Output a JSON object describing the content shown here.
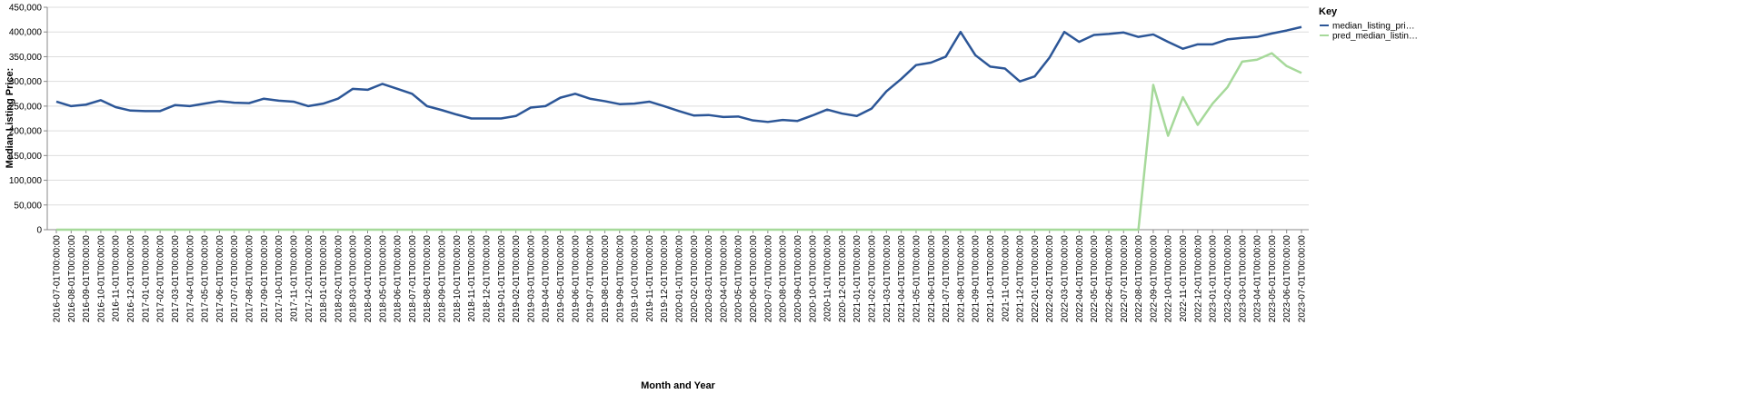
{
  "chart_data": {
    "type": "line",
    "x_label": "Month and Year",
    "y_label": "Median Listing Price:",
    "legend_title": "Key",
    "legend_position": "right",
    "grid": true,
    "categories": [
      "2016-07-01T00:00:00",
      "2016-08-01T00:00:00",
      "2016-09-01T00:00:00",
      "2016-10-01T00:00:00",
      "2016-11-01T00:00:00",
      "2016-12-01T00:00:00",
      "2017-01-01T00:00:00",
      "2017-02-01T00:00:00",
      "2017-03-01T00:00:00",
      "2017-04-01T00:00:00",
      "2017-05-01T00:00:00",
      "2017-06-01T00:00:00",
      "2017-07-01T00:00:00",
      "2017-08-01T00:00:00",
      "2017-09-01T00:00:00",
      "2017-10-01T00:00:00",
      "2017-11-01T00:00:00",
      "2017-12-01T00:00:00",
      "2018-01-01T00:00:00",
      "2018-02-01T00:00:00",
      "2018-03-01T00:00:00",
      "2018-04-01T00:00:00",
      "2018-05-01T00:00:00",
      "2018-06-01T00:00:00",
      "2018-07-01T00:00:00",
      "2018-08-01T00:00:00",
      "2018-09-01T00:00:00",
      "2018-10-01T00:00:00",
      "2018-11-01T00:00:00",
      "2018-12-01T00:00:00",
      "2019-01-01T00:00:00",
      "2019-02-01T00:00:00",
      "2019-03-01T00:00:00",
      "2019-04-01T00:00:00",
      "2019-05-01T00:00:00",
      "2019-06-01T00:00:00",
      "2019-07-01T00:00:00",
      "2019-08-01T00:00:00",
      "2019-09-01T00:00:00",
      "2019-10-01T00:00:00",
      "2019-11-01T00:00:00",
      "2019-12-01T00:00:00",
      "2020-01-01T00:00:00",
      "2020-02-01T00:00:00",
      "2020-03-01T00:00:00",
      "2020-04-01T00:00:00",
      "2020-05-01T00:00:00",
      "2020-06-01T00:00:00",
      "2020-07-01T00:00:00",
      "2020-08-01T00:00:00",
      "2020-09-01T00:00:00",
      "2020-10-01T00:00:00",
      "2020-11-01T00:00:00",
      "2020-12-01T00:00:00",
      "2021-01-01T00:00:00",
      "2021-02-01T00:00:00",
      "2021-03-01T00:00:00",
      "2021-04-01T00:00:00",
      "2021-05-01T00:00:00",
      "2021-06-01T00:00:00",
      "2021-07-01T00:00:00",
      "2021-08-01T00:00:00",
      "2021-09-01T00:00:00",
      "2021-10-01T00:00:00",
      "2021-11-01T00:00:00",
      "2021-12-01T00:00:00",
      "2022-01-01T00:00:00",
      "2022-02-01T00:00:00",
      "2022-03-01T00:00:00",
      "2022-04-01T00:00:00",
      "2022-05-01T00:00:00",
      "2022-06-01T00:00:00",
      "2022-07-01T00:00:00",
      "2022-08-01T00:00:00",
      "2022-09-01T00:00:00",
      "2022-10-01T00:00:00",
      "2022-11-01T00:00:00",
      "2022-12-01T00:00:00",
      "2023-01-01T00:00:00",
      "2023-02-01T00:00:00",
      "2023-03-01T00:00:00",
      "2023-04-01T00:00:00",
      "2023-05-01T00:00:00",
      "2023-06-01T00:00:00",
      "2023-07-01T00:00:00"
    ],
    "series": [
      {
        "name": "median_listing_pri…",
        "color": "#2c5697",
        "values": [
          259000,
          250000,
          253000,
          262000,
          248000,
          241000,
          240000,
          240000,
          252000,
          250000,
          255000,
          260000,
          257000,
          256000,
          265000,
          261000,
          259000,
          250000,
          255000,
          265000,
          285000,
          283000,
          295000,
          285000,
          275000,
          250000,
          242000,
          233000,
          225000,
          225000,
          225000,
          230000,
          247000,
          250000,
          267000,
          275000,
          265000,
          260000,
          254000,
          255000,
          259000,
          250000,
          240000,
          231000,
          232000,
          228000,
          229000,
          221000,
          218000,
          222000,
          220000,
          231000,
          243000,
          235000,
          230000,
          245000,
          280000,
          305000,
          333000,
          338000,
          350000,
          400000,
          353000,
          330000,
          326000,
          300000,
          310000,
          348000,
          400000,
          380000,
          394000,
          396000,
          399000,
          390000,
          395000,
          380000,
          366000,
          375000,
          375000,
          385000,
          388000,
          390000,
          397000,
          403000,
          410000
        ]
      },
      {
        "name": "pred_median_listin…",
        "color": "#a6d99a",
        "values": [
          0,
          0,
          0,
          0,
          0,
          0,
          0,
          0,
          0,
          0,
          0,
          0,
          0,
          0,
          0,
          0,
          0,
          0,
          0,
          0,
          0,
          0,
          0,
          0,
          0,
          0,
          0,
          0,
          0,
          0,
          0,
          0,
          0,
          0,
          0,
          0,
          0,
          0,
          0,
          0,
          0,
          0,
          0,
          0,
          0,
          0,
          0,
          0,
          0,
          0,
          0,
          0,
          0,
          0,
          0,
          0,
          0,
          0,
          0,
          0,
          0,
          0,
          0,
          0,
          0,
          0,
          0,
          0,
          0,
          0,
          0,
          0,
          0,
          0,
          293000,
          190000,
          268000,
          212000,
          255000,
          288000,
          340000,
          344000,
          357000,
          331000,
          317000
        ]
      }
    ],
    "ylim": [
      0,
      450000
    ],
    "yticks": [
      0,
      {
        "value": 50000,
        "label": "50,000"
      },
      {
        "value": 100000,
        "label": "100,000"
      },
      {
        "value": 150000,
        "label": "150,000"
      },
      {
        "value": 200000,
        "label": "200,000"
      },
      {
        "value": 250000,
        "label": "250,000"
      },
      {
        "value": 300000,
        "label": "300,000"
      },
      {
        "value": 350000,
        "label": "350,000"
      },
      {
        "value": 400000,
        "label": "400,000"
      },
      {
        "value": 450000,
        "label": "450,000"
      }
    ]
  }
}
